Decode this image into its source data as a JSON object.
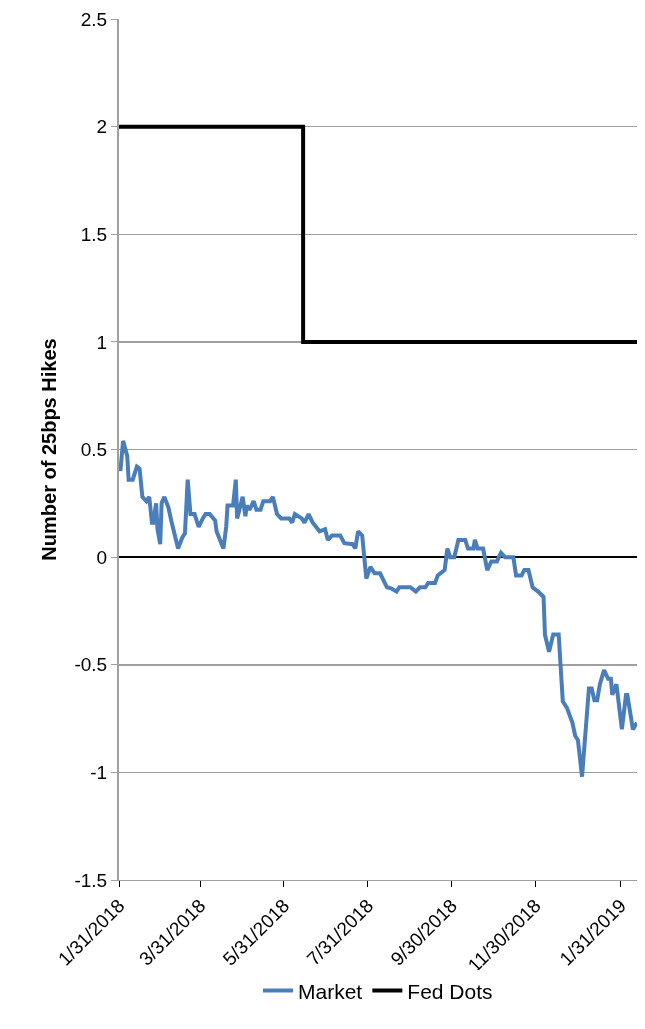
{
  "chart_data": {
    "type": "line",
    "ylabel": "Number of 25bps Hikes",
    "xlim": [
      "2018-01-31",
      "2019-02-12"
    ],
    "xticks": [
      {
        "value": "2018-01-31",
        "label": "1/31/2018"
      },
      {
        "value": "2018-03-31",
        "label": "3/31/2018"
      },
      {
        "value": "2018-05-31",
        "label": "5/31/2018"
      },
      {
        "value": "2018-07-31",
        "label": "7/31/2018"
      },
      {
        "value": "2018-09-30",
        "label": "9/30/2018"
      },
      {
        "value": "2018-11-30",
        "label": "11/30/2018"
      },
      {
        "value": "2019-01-31",
        "label": "1/31/2019"
      }
    ],
    "ylim": [
      -1.5,
      2.5
    ],
    "yticks": [
      -1.5,
      -1,
      -0.5,
      0,
      0.5,
      1,
      1.5,
      2,
      2.5
    ],
    "grid": "y",
    "legend": "bottom",
    "series": [
      {
        "name": "Market",
        "color": "#4a7ebb",
        "x": [
          "2018-02-01",
          "2018-02-03",
          "2018-02-06",
          "2018-02-07",
          "2018-02-10",
          "2018-02-13",
          "2018-02-15",
          "2018-02-17",
          "2018-02-20",
          "2018-02-22",
          "2018-02-24",
          "2018-02-25",
          "2018-02-27",
          "2018-02-28",
          "2018-03-02",
          "2018-03-03",
          "2018-03-05",
          "2018-03-08",
          "2018-03-10",
          "2018-03-15",
          "2018-03-18",
          "2018-03-20",
          "2018-03-22",
          "2018-03-24",
          "2018-03-27",
          "2018-03-30",
          "2018-04-02",
          "2018-04-04",
          "2018-04-07",
          "2018-04-11",
          "2018-04-12",
          "2018-04-17",
          "2018-04-19",
          "2018-04-20",
          "2018-04-24",
          "2018-04-26",
          "2018-04-27",
          "2018-05-01",
          "2018-05-03",
          "2018-05-04",
          "2018-05-06",
          "2018-05-09",
          "2018-05-11",
          "2018-05-14",
          "2018-05-16",
          "2018-05-21",
          "2018-05-23",
          "2018-05-26",
          "2018-05-29",
          "2018-06-04",
          "2018-06-06",
          "2018-06-08",
          "2018-06-13",
          "2018-06-15",
          "2018-06-18",
          "2018-06-21",
          "2018-06-26",
          "2018-06-30",
          "2018-07-02",
          "2018-07-05",
          "2018-07-11",
          "2018-07-14",
          "2018-07-20",
          "2018-07-22",
          "2018-07-24",
          "2018-07-27",
          "2018-07-30",
          "2018-08-02",
          "2018-08-05",
          "2018-08-09",
          "2018-08-14",
          "2018-08-17",
          "2018-08-21",
          "2018-08-23",
          "2018-08-31",
          "2018-09-04",
          "2018-09-07",
          "2018-09-11",
          "2018-09-13",
          "2018-09-18",
          "2018-09-20",
          "2018-09-25",
          "2018-09-27",
          "2018-09-29",
          "2018-10-02",
          "2018-10-05",
          "2018-10-10",
          "2018-10-12",
          "2018-10-16",
          "2018-10-17",
          "2018-10-19",
          "2018-10-23",
          "2018-10-26",
          "2018-10-29",
          "2018-11-02",
          "2018-11-05",
          "2018-11-08",
          "2018-11-14",
          "2018-11-16",
          "2018-11-20",
          "2018-11-22",
          "2018-11-25",
          "2018-11-28",
          "2018-12-02",
          "2018-12-06",
          "2018-12-07",
          "2018-12-10",
          "2018-12-13",
          "2018-12-17",
          "2018-12-20",
          "2018-12-23",
          "2018-12-27",
          "2018-12-29",
          "2018-12-31",
          "2019-01-03",
          "2019-01-08",
          "2019-01-10",
          "2019-01-12",
          "2019-01-14",
          "2019-01-16",
          "2019-01-19",
          "2019-01-22",
          "2019-01-24",
          "2019-01-25",
          "2019-01-28",
          "2019-02-01",
          "2019-02-04",
          "2019-02-05",
          "2019-02-09",
          "2019-02-12"
        ],
        "values": [
          0.4,
          0.54,
          0.47,
          0.36,
          0.36,
          0.42,
          0.41,
          0.28,
          0.26,
          0.28,
          0.16,
          0.16,
          0.25,
          0.13,
          0.06,
          0.25,
          0.28,
          0.23,
          0.17,
          0.04,
          0.09,
          0.11,
          0.36,
          0.2,
          0.2,
          0.14,
          0.18,
          0.2,
          0.2,
          0.17,
          0.12,
          0.04,
          0.14,
          0.24,
          0.24,
          0.36,
          0.18,
          0.28,
          0.19,
          0.24,
          0.22,
          0.26,
          0.22,
          0.22,
          0.26,
          0.26,
          0.28,
          0.2,
          0.18,
          0.18,
          0.16,
          0.2,
          0.18,
          0.16,
          0.2,
          0.16,
          0.12,
          0.13,
          0.08,
          0.1,
          0.1,
          0.065,
          0.06,
          0.04,
          0.12,
          0.1,
          -0.1,
          -0.045,
          -0.075,
          -0.075,
          -0.14,
          -0.145,
          -0.16,
          -0.14,
          -0.14,
          -0.16,
          -0.14,
          -0.14,
          -0.12,
          -0.12,
          -0.085,
          -0.06,
          0.04,
          0,
          0,
          0.08,
          0.08,
          0.04,
          0.04,
          0.08,
          0.04,
          0.04,
          -0.06,
          -0.02,
          -0.02,
          0.02,
          0,
          0,
          -0.085,
          -0.085,
          -0.06,
          -0.06,
          -0.14,
          -0.16,
          -0.185,
          -0.36,
          -0.44,
          -0.36,
          -0.36,
          -0.67,
          -0.7,
          -0.77,
          -0.83,
          -0.85,
          -1.02,
          -0.61,
          -0.61,
          -0.665,
          -0.665,
          -0.59,
          -0.525,
          -0.565,
          -0.565,
          -0.64,
          -0.59,
          -0.8,
          -0.64,
          -0.64,
          -0.8,
          -0.77
        ]
      },
      {
        "name": "Fed Dots",
        "color": "#000000",
        "type": "step",
        "x": [
          "2018-01-31",
          "2018-06-14",
          "2019-02-12"
        ],
        "values": [
          2,
          1,
          1
        ]
      }
    ]
  }
}
